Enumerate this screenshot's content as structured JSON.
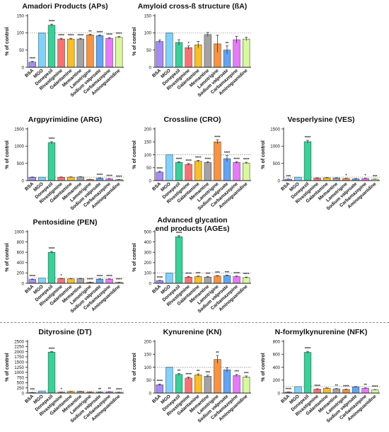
{
  "colors": {
    "BSA": "#a78bfa",
    "MGO": "#7dd3fc",
    "Donepezil": "#34d399",
    "Rivastigmine": "#f87171",
    "Galantamine": "#fbbf24",
    "Memantine": "#a3a3a3",
    "Lamotrigine": "#fb923c",
    "Sodium valproate": "#60a5fa",
    "Carbamazepine": "#e879f9",
    "Aminoguanidine": "#d9f99d"
  },
  "shared_ylabel": "% of control",
  "chart_data": [
    {
      "type": "bar",
      "title": "Amadori Products (APs)",
      "ylabel": "% of control",
      "ylim": [
        0,
        150
      ],
      "yticks": [
        0,
        50,
        100,
        150
      ],
      "reference_line": 100,
      "categories": [
        "BSA",
        "MGO",
        "Donepezil",
        "Rivastigmine",
        "Galantamine",
        "Memantine",
        "Lamotrigine",
        "Sodium valproate",
        "Carbamazepine",
        "Aminoguanidine"
      ],
      "values": [
        15,
        100,
        122,
        82,
        82,
        82,
        94,
        92,
        84,
        87
      ],
      "errors": [
        2,
        0,
        3,
        2,
        2,
        2,
        2,
        2,
        2,
        2
      ],
      "significance": [
        "****",
        "",
        "****",
        "****",
        "****",
        "****",
        "**",
        "****",
        "****",
        "****"
      ]
    },
    {
      "type": "bar",
      "title": "Amyloid cross-ß structure (ßA)",
      "ylabel": "% of control",
      "ylim": [
        0,
        150
      ],
      "yticks": [
        0,
        50,
        100,
        150
      ],
      "reference_line": 100,
      "categories": [
        "BSA",
        "MGO",
        "Donepezil",
        "Rivastigmine",
        "Galantamine",
        "Memantine",
        "Lamotrigine",
        "Sodium valproate",
        "Carbamazepine",
        "Aminoguanidine"
      ],
      "values": [
        75,
        100,
        72,
        57,
        65,
        95,
        68,
        50,
        80,
        82
      ],
      "errors": [
        4,
        0,
        8,
        5,
        10,
        6,
        25,
        12,
        10,
        5
      ],
      "significance": [
        "",
        "",
        "",
        "*",
        "",
        "",
        "",
        "**",
        "",
        ""
      ]
    },
    {
      "type": "bar",
      "title": "Argpyrimidine (ARG)",
      "ylabel": "% of control",
      "ylim": [
        0,
        1500
      ],
      "yticks": [
        0,
        500,
        1000,
        1500
      ],
      "reference_line": 100,
      "categories": [
        "BSA",
        "MGO",
        "Donepezil",
        "Rivastigmine",
        "Galantamine",
        "Memantine",
        "Lamotrigine",
        "Sodium valproate",
        "Carbamazepine",
        "Aminoguanidine"
      ],
      "values": [
        95,
        100,
        1100,
        98,
        100,
        105,
        35,
        70,
        50,
        30
      ],
      "errors": [
        10,
        0,
        30,
        8,
        8,
        8,
        5,
        8,
        6,
        5
      ],
      "significance": [
        "",
        "",
        "****",
        "",
        "",
        "",
        "",
        "****",
        "****",
        "****"
      ]
    },
    {
      "type": "bar",
      "title": "Crossline (CRO)",
      "ylabel": "% of control",
      "ylim": [
        0,
        200
      ],
      "yticks": [
        0,
        50,
        100,
        150,
        200
      ],
      "reference_line": 100,
      "categories": [
        "BSA",
        "MGO",
        "Donepezil",
        "Rivastigmine",
        "Galantamine",
        "Memantine",
        "Lamotrigine",
        "Sodium valproate",
        "Carbamazepine",
        "Aminoguanidine"
      ],
      "values": [
        33,
        100,
        70,
        63,
        75,
        70,
        150,
        85,
        70,
        68
      ],
      "errors": [
        3,
        0,
        3,
        3,
        3,
        3,
        8,
        12,
        3,
        3
      ],
      "significance": [
        "****",
        "",
        "****",
        "****",
        "****",
        "****",
        "****",
        "****",
        "****",
        "****"
      ]
    },
    {
      "type": "bar",
      "title": "Vesperlysine (VES)",
      "ylabel": "% of control",
      "ylim": [
        0,
        1500
      ],
      "yticks": [
        0,
        500,
        1000,
        1500
      ],
      "reference_line": 100,
      "categories": [
        "BSA",
        "MGO",
        "Donepezil",
        "Rivastigmine",
        "Galantamine",
        "Memantine",
        "Lamotrigine",
        "Sodium valproate",
        "Carbamazepine",
        "Aminoguanidine"
      ],
      "values": [
        40,
        100,
        1130,
        70,
        80,
        75,
        60,
        50,
        60,
        40
      ],
      "errors": [
        5,
        0,
        40,
        8,
        8,
        8,
        8,
        8,
        8,
        5
      ],
      "significance": [
        "***",
        "",
        "****",
        "",
        "",
        "",
        "*",
        "",
        "*",
        "***"
      ]
    },
    {
      "type": "bar",
      "title": "Pentosidine (PEN)",
      "ylabel": "% of control",
      "ylim": [
        0,
        1000
      ],
      "yticks": [
        0,
        200,
        400,
        600,
        800,
        1000
      ],
      "reference_line": 100,
      "categories": [
        "BSA",
        "MGO",
        "Donepezil",
        "Rivastigmine",
        "Galantamine",
        "Memantine",
        "Lamotrigine",
        "Sodium valproate",
        "Carbamazepine",
        "Aminoguanidine"
      ],
      "values": [
        75,
        100,
        600,
        90,
        85,
        90,
        20,
        80,
        80,
        20
      ],
      "errors": [
        5,
        0,
        15,
        5,
        5,
        5,
        3,
        5,
        5,
        3
      ],
      "significance": [
        "****",
        "",
        "****",
        "*",
        "",
        "",
        "****",
        "****",
        "****",
        "****"
      ]
    },
    {
      "type": "bar",
      "title": "Advanced glycation end products (AGEs)",
      "title_lines": [
        "Advanced glycation",
        "end products (AGEs)"
      ],
      "ylabel": "% of control",
      "ylim": [
        0,
        500
      ],
      "yticks": [
        0,
        100,
        200,
        300,
        400,
        500
      ],
      "reference_line": 100,
      "categories": [
        "BSA",
        "MGO",
        "Donepezil",
        "Rivastigmine",
        "Galantamine",
        "Memantine",
        "Lamotrigine",
        "Sodium valproate",
        "Carbamazepine",
        "Aminoguanidine"
      ],
      "values": [
        25,
        100,
        450,
        60,
        65,
        60,
        70,
        75,
        65,
        55
      ],
      "errors": [
        3,
        0,
        10,
        5,
        5,
        5,
        5,
        5,
        5,
        5
      ],
      "significance": [
        "****",
        "",
        "****",
        "****",
        "***",
        "***",
        "***",
        "***",
        "****",
        "****"
      ]
    },
    {
      "type": "bar",
      "title": "Dityrosine (DT)",
      "ylabel": "% of control",
      "ylim": [
        0,
        2500
      ],
      "yticks": [
        0,
        250,
        500,
        750,
        1000,
        1250,
        1500,
        1750,
        2000,
        2250,
        2500
      ],
      "reference_line": 100,
      "categories": [
        "BSA",
        "MGO",
        "Donepezil",
        "Rivastigmine",
        "Galantamine",
        "Memantine",
        "Lamotrigine",
        "Sodium valproate",
        "Carbamazepine",
        "Aminoguanidine"
      ],
      "values": [
        25,
        100,
        1980,
        40,
        70,
        75,
        50,
        45,
        60,
        35
      ],
      "errors": [
        4,
        0,
        30,
        5,
        6,
        6,
        5,
        5,
        6,
        4
      ],
      "significance": [
        "***",
        "",
        "****",
        "*",
        "",
        "",
        "",
        "**",
        "**",
        "****"
      ]
    },
    {
      "type": "bar",
      "title": "Kynurenine (KN)",
      "ylabel": "% of control",
      "ylim": [
        0,
        200
      ],
      "yticks": [
        0,
        50,
        100,
        150,
        200
      ],
      "reference_line": 100,
      "categories": [
        "BSA",
        "MGO",
        "Donepezil",
        "Rivastigmine",
        "Galantamine",
        "Memantine",
        "Lamotrigine",
        "Sodium valproate",
        "Carbamazepine",
        "Aminoguanidine"
      ],
      "values": [
        32,
        100,
        72,
        58,
        70,
        65,
        130,
        90,
        68,
        62
      ],
      "errors": [
        3,
        0,
        4,
        4,
        4,
        4,
        15,
        8,
        4,
        4
      ],
      "significance": [
        "****",
        "",
        "**",
        "****",
        "**",
        "***",
        "**",
        "",
        "***",
        "***"
      ]
    },
    {
      "type": "bar",
      "title": "N-formylkynurenine (NFK)",
      "ylabel": "% of control",
      "ylim": [
        0,
        800
      ],
      "yticks": [
        0,
        200,
        400,
        600,
        800
      ],
      "reference_line": 100,
      "categories": [
        "BSA",
        "MGO",
        "Donepezil",
        "Rivastigmine",
        "Galantamine",
        "Memantine",
        "Lamotrigine",
        "Sodium valproate",
        "Carbamazepine",
        "Aminoguanidine"
      ],
      "values": [
        15,
        100,
        630,
        60,
        75,
        65,
        55,
        95,
        75,
        50
      ],
      "errors": [
        3,
        0,
        15,
        5,
        5,
        5,
        5,
        6,
        5,
        4
      ],
      "significance": [
        "****",
        "",
        "****",
        "****",
        "",
        "**",
        "****",
        "",
        "**",
        "****"
      ]
    }
  ]
}
